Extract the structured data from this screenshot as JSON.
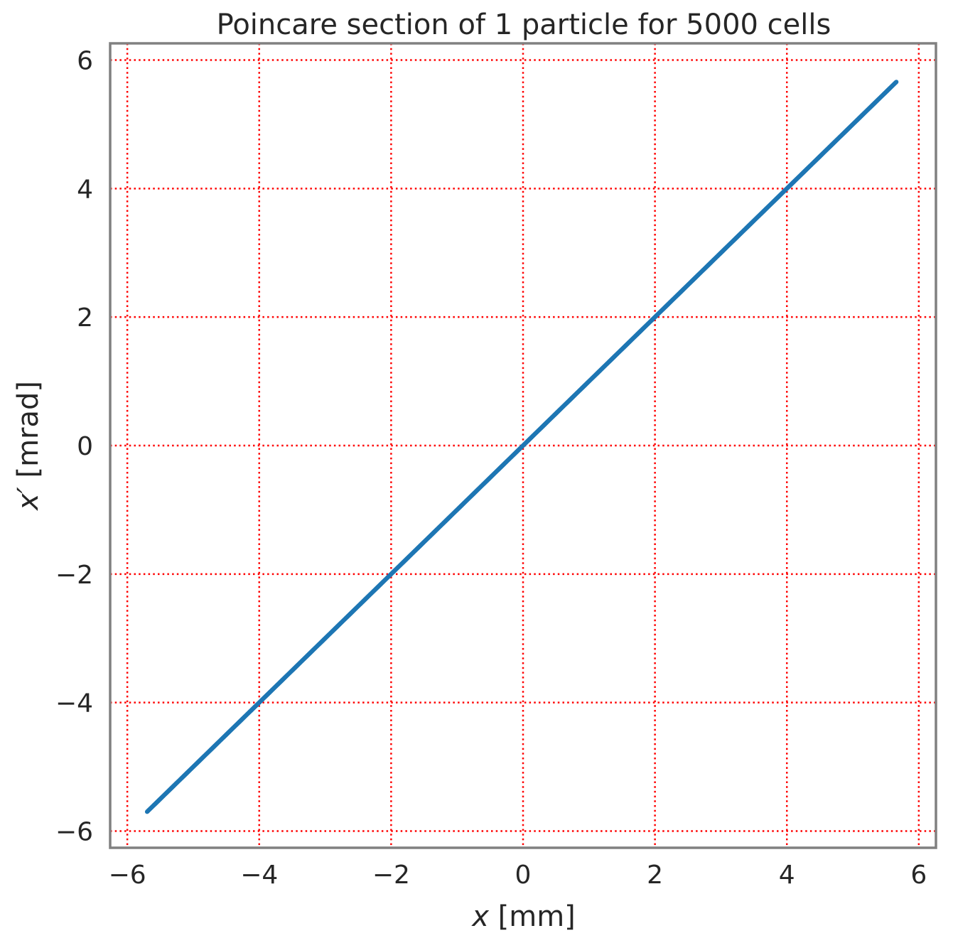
{
  "chart_data": {
    "type": "scatter",
    "title": "Poincare section of 1 particle for 5000 cells",
    "xlabel": {
      "symbol": "x",
      "unit": " [mm]"
    },
    "ylabel": {
      "symbol": "x′",
      "unit": " [mrad]"
    },
    "xlim": [
      -6.26,
      6.26
    ],
    "ylim": [
      -6.26,
      6.26
    ],
    "xticks": [
      -6,
      -4,
      -2,
      0,
      2,
      4,
      6
    ],
    "yticks": [
      -6,
      -4,
      -2,
      0,
      2,
      4,
      6
    ],
    "xtick_labels": [
      "−6",
      "−4",
      "−2",
      "0",
      "2",
      "4",
      "6"
    ],
    "ytick_labels": [
      "−6",
      "−4",
      "−2",
      "0",
      "2",
      "4",
      "6"
    ],
    "grid": true,
    "grid_color": "#ff0000",
    "grid_style": "dotted",
    "frame_color": "#808080",
    "series": [
      {
        "color": "#1f77b4",
        "points": {
          "n": 5000,
          "x_range": [
            -5.7,
            5.66
          ],
          "slope": 1.0,
          "intercept": 0.0
        }
      }
    ]
  }
}
